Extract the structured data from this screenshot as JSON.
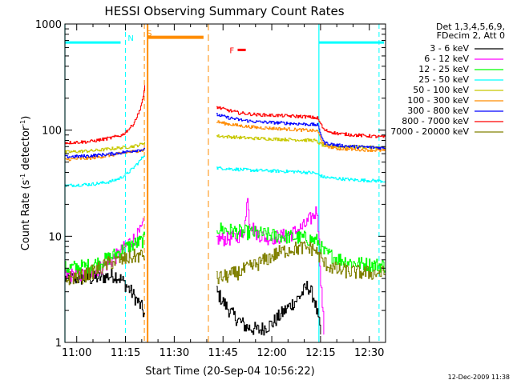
{
  "chart_data": {
    "type": "line",
    "title": "HESSI Observing Summary Count Rates",
    "xlabel": "Start Time (20-Sep-04 10:56:22)",
    "ylabel_main": "Count Rate (s",
    "ylabel_sup1": "-1",
    "ylabel_mid": " detector",
    "ylabel_sup2": "-1",
    "ylabel_end": ")",
    "y_scale": "log",
    "ylim": [
      1,
      1000
    ],
    "xlim_minutes": [
      56.37,
      155
    ],
    "x_ticks": [
      {
        "m": 60,
        "label": "11:00"
      },
      {
        "m": 75,
        "label": "11:15"
      },
      {
        "m": 90,
        "label": "11:30"
      },
      {
        "m": 105,
        "label": "11:45"
      },
      {
        "m": 120,
        "label": "12:00"
      },
      {
        "m": 135,
        "label": "12:15"
      },
      {
        "m": 150,
        "label": "12:30"
      }
    ],
    "y_ticks": [
      {
        "v": 1,
        "label": "1"
      },
      {
        "v": 10,
        "label": "10"
      },
      {
        "v": 100,
        "label": "100"
      },
      {
        "v": 1000,
        "label": "1000"
      }
    ],
    "legend_header": [
      "Det 1,3,4,5,6,9,",
      "FDecim 2, Att 0"
    ],
    "series": [
      {
        "name": "3 - 6 keV",
        "color": "#000000",
        "seg1": [
          [
            56.4,
            4
          ],
          [
            65,
            4
          ],
          [
            72,
            4.3
          ],
          [
            74,
            3.8
          ],
          [
            76,
            3.2
          ],
          [
            78,
            2.6
          ],
          [
            80,
            2.1
          ],
          [
            81,
            1.7
          ]
        ],
        "seg2": [
          [
            103,
            3
          ],
          [
            105,
            2.4
          ],
          [
            108,
            1.8
          ],
          [
            112,
            1.4
          ],
          [
            116,
            1.3
          ],
          [
            120,
            1.5
          ],
          [
            124,
            2
          ],
          [
            128,
            2.6
          ],
          [
            131,
            3.4
          ],
          [
            133,
            2.6
          ],
          [
            134,
            1.8
          ],
          [
            135,
            1.2
          ]
        ]
      },
      {
        "name": "6 - 12 keV",
        "color": "#ff00ff",
        "seg1": [
          [
            56.4,
            4.3
          ],
          [
            63,
            4.3
          ],
          [
            70,
            5.6
          ],
          [
            74,
            7.4
          ],
          [
            76,
            8.8
          ],
          [
            78,
            9.6
          ],
          [
            79.5,
            11
          ],
          [
            80.5,
            13
          ]
        ],
        "seg2": [
          [
            103,
            9.5
          ],
          [
            105,
            9.4
          ],
          [
            108,
            9.6
          ],
          [
            111,
            10.5
          ],
          [
            112,
            15
          ],
          [
            112.5,
            26
          ],
          [
            113,
            14
          ],
          [
            115,
            10.8
          ],
          [
            118,
            9.7
          ],
          [
            122,
            9.8
          ],
          [
            126,
            10.5
          ],
          [
            130,
            12.5
          ],
          [
            133,
            16
          ],
          [
            134,
            18
          ],
          [
            135,
            4
          ],
          [
            136,
            1.3
          ]
        ]
      },
      {
        "name": "12 - 25 keV",
        "color": "#00ff00",
        "seg1": [
          [
            56.4,
            5
          ],
          [
            63,
            5.2
          ],
          [
            68,
            5.8
          ],
          [
            72,
            6.8
          ],
          [
            75,
            7.8
          ],
          [
            78,
            8.5
          ],
          [
            80,
            9
          ],
          [
            81,
            9.5
          ]
        ],
        "seg2": [
          [
            103,
            12
          ],
          [
            106,
            11.4
          ],
          [
            110,
            11
          ],
          [
            115,
            10.7
          ],
          [
            120,
            10.2
          ],
          [
            125,
            9.9
          ],
          [
            130,
            9.6
          ],
          [
            134,
            9
          ],
          [
            136,
            7
          ],
          [
            140,
            6.2
          ],
          [
            145,
            5.6
          ],
          [
            150,
            5.4
          ],
          [
            155,
            5.3
          ]
        ]
      },
      {
        "name": "25 - 50 keV",
        "color": "#00ffff",
        "seg1": [
          [
            56.4,
            30
          ],
          [
            65,
            31
          ],
          [
            70,
            32.5
          ],
          [
            73,
            35
          ],
          [
            75,
            38
          ],
          [
            77,
            43
          ],
          [
            79,
            50
          ],
          [
            81,
            60
          ]
        ],
        "seg2": [
          [
            103,
            44
          ],
          [
            108,
            43
          ],
          [
            113,
            42
          ],
          [
            118,
            41.5
          ],
          [
            123,
            41
          ],
          [
            128,
            40.5
          ],
          [
            133,
            39.5
          ],
          [
            136,
            36
          ],
          [
            140,
            35
          ],
          [
            145,
            34
          ],
          [
            150,
            33.5
          ],
          [
            155,
            33
          ]
        ]
      },
      {
        "name": "50 - 100 keV",
        "color": "#c8c800",
        "seg1": [
          [
            56.4,
            62
          ],
          [
            65,
            64
          ],
          [
            71,
            67
          ],
          [
            75,
            69
          ],
          [
            78,
            71
          ],
          [
            80,
            74
          ],
          [
            81,
            78
          ]
        ],
        "seg2": [
          [
            103,
            88
          ],
          [
            108,
            86
          ],
          [
            113,
            84
          ],
          [
            118,
            83
          ],
          [
            123,
            82
          ],
          [
            128,
            81
          ],
          [
            133,
            80
          ],
          [
            136,
            71
          ],
          [
            140,
            70
          ],
          [
            145,
            70
          ],
          [
            150,
            69
          ],
          [
            155,
            68
          ]
        ]
      },
      {
        "name": "100 - 300 keV",
        "color": "#ff8c00",
        "seg1": [
          [
            56.4,
            53
          ],
          [
            63,
            54
          ],
          [
            69,
            57
          ],
          [
            73,
            60
          ],
          [
            76,
            62
          ],
          [
            79,
            64
          ],
          [
            81,
            65
          ]
        ],
        "seg2": [
          [
            103,
            120
          ],
          [
            106,
            115
          ],
          [
            110,
            110
          ],
          [
            115,
            106
          ],
          [
            120,
            104
          ],
          [
            125,
            102
          ],
          [
            130,
            100
          ],
          [
            134,
            98
          ],
          [
            136,
            72
          ],
          [
            140,
            67
          ],
          [
            145,
            66
          ],
          [
            150,
            65
          ],
          [
            155,
            64
          ]
        ]
      },
      {
        "name": "300 - 800 keV",
        "color": "#0000ff",
        "seg1": [
          [
            56.4,
            56
          ],
          [
            63,
            57
          ],
          [
            69,
            59
          ],
          [
            73,
            61
          ],
          [
            76,
            63
          ],
          [
            79,
            65
          ],
          [
            81,
            66
          ]
        ],
        "seg2": [
          [
            103,
            140
          ],
          [
            106,
            132
          ],
          [
            110,
            125
          ],
          [
            115,
            120
          ],
          [
            120,
            118
          ],
          [
            125,
            116
          ],
          [
            130,
            114
          ],
          [
            134,
            112
          ],
          [
            136,
            76
          ],
          [
            140,
            72
          ],
          [
            145,
            70
          ],
          [
            150,
            69
          ],
          [
            155,
            68
          ]
        ]
      },
      {
        "name": "800 - 7000 keV",
        "color": "#ff0000",
        "seg1": [
          [
            56.4,
            76
          ],
          [
            64,
            78
          ],
          [
            70,
            84
          ],
          [
            74,
            90
          ],
          [
            77,
            110
          ],
          [
            79,
            145
          ],
          [
            80.5,
            210
          ],
          [
            81,
            280
          ]
        ],
        "seg2": [
          [
            103,
            165
          ],
          [
            106,
            155
          ],
          [
            110,
            145
          ],
          [
            115,
            140
          ],
          [
            120,
            138
          ],
          [
            125,
            136
          ],
          [
            130,
            134
          ],
          [
            134,
            130
          ],
          [
            136,
            100
          ],
          [
            140,
            93
          ],
          [
            145,
            90
          ],
          [
            150,
            88
          ],
          [
            155,
            86
          ]
        ]
      },
      {
        "name": "7000 - 20000 keV",
        "color": "#808000",
        "seg1": [
          [
            56.4,
            4
          ],
          [
            62,
            4.2
          ],
          [
            66,
            4.8
          ],
          [
            70,
            5.6
          ],
          [
            74,
            6
          ],
          [
            78,
            6.5
          ],
          [
            81,
            6.6
          ]
        ],
        "seg2": [
          [
            103,
            4
          ],
          [
            106,
            4.2
          ],
          [
            110,
            4.6
          ],
          [
            114,
            5.2
          ],
          [
            118,
            6
          ],
          [
            122,
            7
          ],
          [
            126,
            7.6
          ],
          [
            130,
            7.8
          ],
          [
            133,
            7.6
          ],
          [
            136,
            5.6
          ],
          [
            140,
            4.8
          ],
          [
            145,
            4.6
          ],
          [
            150,
            4.5
          ],
          [
            155,
            4.5
          ]
        ]
      }
    ],
    "attenuator_states": [
      {
        "label": "N",
        "color": "#00ffff"
      },
      {
        "label": "S",
        "color": "#ff8c00"
      },
      {
        "label": "F",
        "color": "#ff0000"
      }
    ],
    "timestamp": "12-Dec-2009 11:38"
  }
}
